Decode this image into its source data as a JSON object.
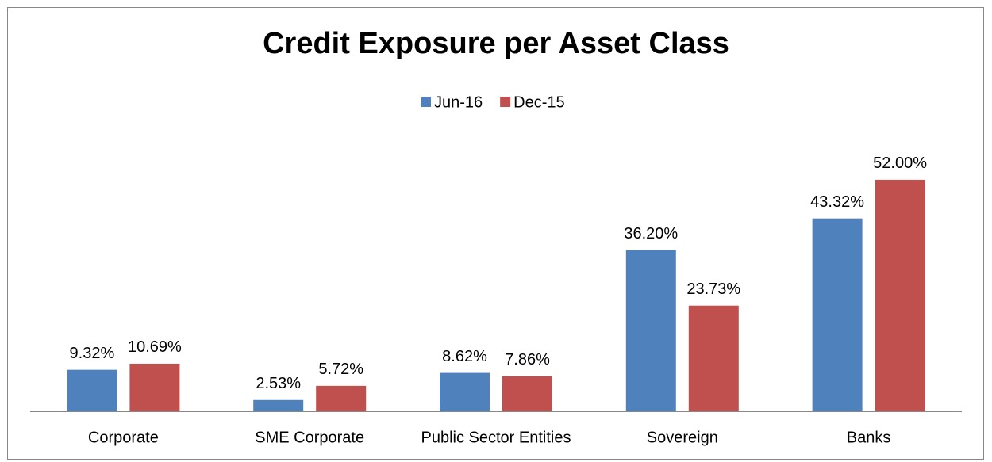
{
  "chart_data": {
    "type": "bar",
    "title": "Credit Exposure per Asset Class",
    "categories": [
      "Corporate",
      "SME Corporate",
      "Public Sector Entities",
      "Sovereign",
      "Banks"
    ],
    "series": [
      {
        "name": "Jun-16",
        "color": "#4f81bd",
        "values": [
          9.32,
          2.53,
          8.62,
          36.2,
          43.32
        ],
        "value_labels": [
          "9.32%",
          "2.53%",
          "8.62%",
          "36.20%",
          "43.32%"
        ]
      },
      {
        "name": "Dec-15",
        "color": "#c0504d",
        "values": [
          10.69,
          5.72,
          7.86,
          23.73,
          52.0
        ],
        "value_labels": [
          "10.69%",
          "5.72%",
          "7.86%",
          "23.73%",
          "52.00%"
        ]
      }
    ],
    "ylim": [
      0,
      60
    ],
    "legend": "top"
  }
}
